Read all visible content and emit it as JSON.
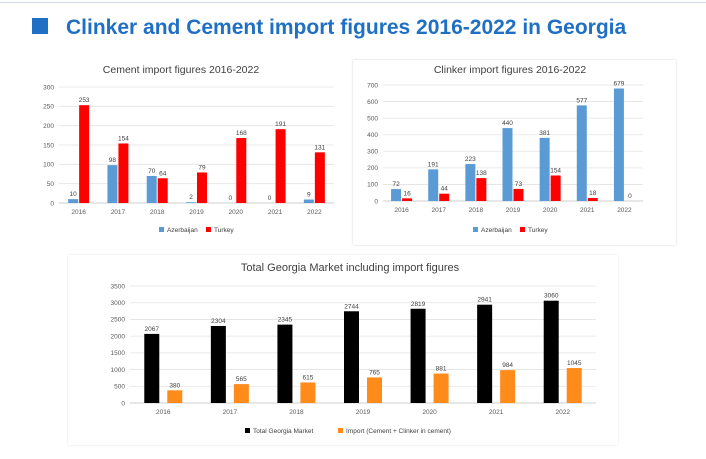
{
  "page_title": "Clinker and Cement import figures 2016-2022 in Georgia",
  "colors": {
    "title": "#1f6fc5",
    "azerbaijan": "#5b9bd5",
    "turkey": "#ff0000",
    "total": "#000000",
    "import": "#ff8c1a"
  },
  "chart_data": [
    {
      "type": "bar",
      "title": "Cement import figures 2016-2022",
      "categories": [
        "2016",
        "2017",
        "2018",
        "2019",
        "2020",
        "2021",
        "2022"
      ],
      "series": [
        {
          "name": "Azerbaijan",
          "values": [
            10,
            98,
            70,
            2,
            0,
            0,
            9
          ],
          "color": "#5b9bd5"
        },
        {
          "name": "Turkey",
          "values": [
            253,
            154,
            64,
            79,
            168,
            191,
            131
          ],
          "color": "#ff0000"
        }
      ],
      "ylim": [
        0,
        300
      ],
      "yticks": [
        0,
        50,
        100,
        150,
        200,
        250,
        300
      ],
      "grid": true,
      "legend": "bottom"
    },
    {
      "type": "bar",
      "title": "Clinker import figures 2016-2022",
      "categories": [
        "2016",
        "2017",
        "2018",
        "2019",
        "2020",
        "2021",
        "2022"
      ],
      "series": [
        {
          "name": "Azerbaijan",
          "values": [
            72,
            191,
            223,
            440,
            381,
            577,
            679
          ],
          "color": "#5b9bd5"
        },
        {
          "name": "Turkey",
          "values": [
            16,
            44,
            138,
            73,
            154,
            18,
            0
          ],
          "color": "#ff0000"
        }
      ],
      "ylim": [
        0,
        700
      ],
      "yticks": [
        0,
        100,
        200,
        300,
        400,
        500,
        600,
        700
      ],
      "grid": true,
      "legend": "bottom"
    },
    {
      "type": "bar",
      "title": "Total Georgia Market including import figures",
      "categories": [
        "2016",
        "2017",
        "2018",
        "2019",
        "2020",
        "2021",
        "2022"
      ],
      "series": [
        {
          "name": "Total Georgia Market",
          "values": [
            2067,
            2304,
            2345,
            2744,
            2819,
            2941,
            3060
          ],
          "color": "#000000"
        },
        {
          "name": "Import (Cement + Clinker in cement)",
          "values": [
            380,
            565,
            615,
            765,
            881,
            984,
            1045
          ],
          "color": "#ff8c1a"
        }
      ],
      "ylim": [
        0,
        3500
      ],
      "yticks": [
        0,
        500,
        1000,
        1500,
        2000,
        2500,
        3000,
        3500
      ],
      "grid": true,
      "legend": "bottom"
    }
  ]
}
